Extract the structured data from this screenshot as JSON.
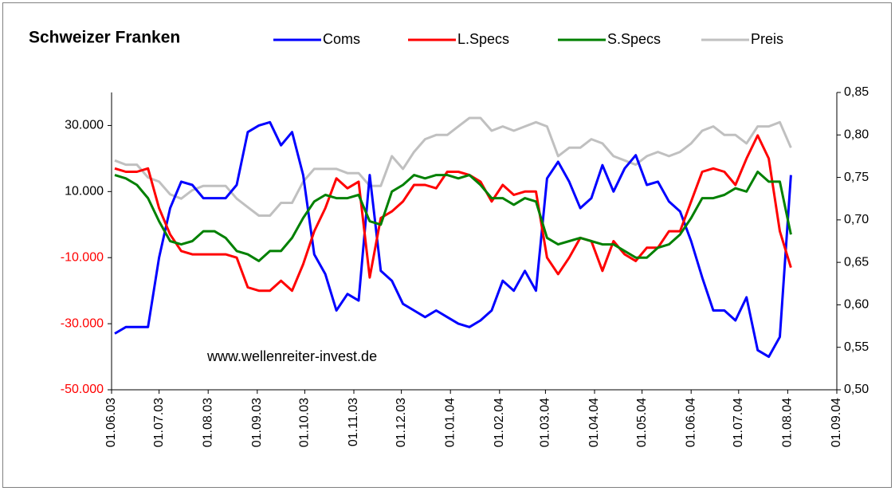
{
  "chart_data": {
    "type": "line",
    "title": "Schweizer Franken",
    "annotation": "www.wellenreiter-invest.de",
    "x": [
      "03.06.03",
      "10.06.03",
      "17.06.03",
      "24.06.03",
      "01.07.03",
      "08.07.03",
      "15.07.03",
      "22.07.03",
      "29.07.03",
      "05.08.03",
      "12.08.03",
      "19.08.03",
      "26.08.03",
      "02.09.03",
      "09.09.03",
      "16.09.03",
      "23.09.03",
      "30.09.03",
      "07.10.03",
      "14.10.03",
      "21.10.03",
      "28.10.03",
      "04.11.03",
      "11.11.03",
      "18.11.03",
      "25.11.03",
      "02.12.03",
      "09.12.03",
      "16.12.03",
      "23.12.03",
      "30.12.03",
      "06.01.04",
      "13.01.04",
      "20.01.04",
      "27.01.04",
      "03.02.04",
      "10.02.04",
      "17.02.04",
      "24.02.04",
      "02.03.04",
      "09.03.04",
      "16.03.04",
      "23.03.04",
      "30.03.04",
      "06.04.04",
      "13.04.04",
      "20.04.04",
      "27.04.04",
      "04.05.04",
      "11.05.04",
      "18.05.04",
      "25.05.04",
      "01.06.04",
      "08.06.04",
      "15.06.04",
      "22.06.04",
      "29.06.04",
      "06.07.04",
      "13.07.04",
      "20.07.04",
      "27.07.04",
      "03.08.04"
    ],
    "xlim": [
      "01.06.03",
      "01.09.04"
    ],
    "xticks": [
      "01.06.03",
      "01.07.03",
      "01.08.03",
      "01.09.03",
      "01.10.03",
      "01.11.03",
      "01.12.03",
      "01.01.04",
      "01.02.04",
      "01.03.04",
      "01.04.04",
      "01.05.04",
      "01.06.04",
      "01.07.04",
      "01.08.04",
      "01.09.04"
    ],
    "ylim": [
      -50000,
      40000
    ],
    "yticks": [
      {
        "value": -50000,
        "label": "-50.000"
      },
      {
        "value": -30000,
        "label": "-30.000"
      },
      {
        "value": -10000,
        "label": "-10.000"
      },
      {
        "value": 10000,
        "label": "10.000"
      },
      {
        "value": 30000,
        "label": "30.000"
      }
    ],
    "y2lim": [
      0.5,
      0.85
    ],
    "y2ticks": [
      {
        "value": 0.5,
        "label": "0,50"
      },
      {
        "value": 0.55,
        "label": "0,55"
      },
      {
        "value": 0.6,
        "label": "0,60"
      },
      {
        "value": 0.65,
        "label": "0,65"
      },
      {
        "value": 0.7,
        "label": "0,70"
      },
      {
        "value": 0.75,
        "label": "0,75"
      },
      {
        "value": 0.8,
        "label": "0,80"
      },
      {
        "value": 0.85,
        "label": "0,85"
      }
    ],
    "negative_color": "#ff0000",
    "grid": false,
    "series": [
      {
        "name": "Coms",
        "color": "#0000ff",
        "values": [
          -33000,
          -31000,
          -31000,
          -31000,
          -10000,
          5000,
          13000,
          12000,
          8000,
          8000,
          8000,
          12000,
          28000,
          30000,
          31000,
          24000,
          28000,
          15000,
          -9000,
          -15000,
          -26000,
          -21000,
          -23000,
          15000,
          -14000,
          -17000,
          -24000,
          -26000,
          -28000,
          -26000,
          -28000,
          -30000,
          -31000,
          -29000,
          -26000,
          -17000,
          -20000,
          -14000,
          -20000,
          14000,
          19000,
          13000,
          5000,
          8000,
          18000,
          10000,
          17000,
          21000,
          12000,
          13000,
          7000,
          4000,
          -5000,
          -16000,
          -26000,
          -26000,
          -29000,
          -22000,
          -38000,
          -40000,
          -34000,
          15000
        ]
      },
      {
        "name": "L.Specs",
        "color": "#ff0000",
        "values": [
          17000,
          16000,
          16000,
          17000,
          5000,
          -3000,
          -8000,
          -9000,
          -9000,
          -9000,
          -9000,
          -10000,
          -19000,
          -20000,
          -20000,
          -17000,
          -20000,
          -12000,
          -2000,
          5000,
          14000,
          11000,
          13000,
          -16000,
          2000,
          4000,
          7000,
          12000,
          12000,
          11000,
          16000,
          16000,
          15000,
          13000,
          7000,
          12000,
          9000,
          10000,
          10000,
          -10000,
          -15000,
          -10000,
          -4000,
          -5000,
          -14000,
          -5000,
          -9000,
          -11000,
          -7000,
          -7000,
          -2000,
          -2000,
          7000,
          16000,
          17000,
          16000,
          12000,
          20000,
          27000,
          20000,
          -2000,
          -13000
        ]
      },
      {
        "name": "S.Specs",
        "color": "#008000",
        "values": [
          15000,
          14000,
          12000,
          8000,
          1000,
          -5000,
          -6000,
          -5000,
          -2000,
          -2000,
          -4000,
          -8000,
          -9000,
          -11000,
          -8000,
          -8000,
          -4000,
          2000,
          7000,
          9000,
          8000,
          8000,
          9000,
          1000,
          0,
          10000,
          12000,
          15000,
          14000,
          15000,
          15000,
          14000,
          15000,
          12000,
          8000,
          8000,
          6000,
          8000,
          7000,
          -4000,
          -6000,
          -5000,
          -4000,
          -5000,
          -6000,
          -6000,
          -8000,
          -10000,
          -10000,
          -7000,
          -6000,
          -3000,
          2000,
          8000,
          8000,
          9000,
          11000,
          10000,
          16000,
          13000,
          13000,
          -3000
        ]
      },
      {
        "name": "Preis",
        "color": "#c0c0c0",
        "axis": "y2",
        "values": [
          0.77,
          0.765,
          0.765,
          0.75,
          0.745,
          0.73,
          0.725,
          0.735,
          0.74,
          0.74,
          0.74,
          0.725,
          0.715,
          0.705,
          0.705,
          0.72,
          0.72,
          0.745,
          0.76,
          0.76,
          0.76,
          0.755,
          0.755,
          0.74,
          0.74,
          0.775,
          0.76,
          0.78,
          0.795,
          0.8,
          0.8,
          0.81,
          0.82,
          0.82,
          0.805,
          0.81,
          0.805,
          0.81,
          0.815,
          0.81,
          0.775,
          0.785,
          0.785,
          0.795,
          0.79,
          0.775,
          0.77,
          0.765,
          0.775,
          0.78,
          0.775,
          0.78,
          0.79,
          0.805,
          0.81,
          0.8,
          0.8,
          0.79,
          0.81,
          0.81,
          0.815,
          0.785
        ]
      }
    ]
  }
}
